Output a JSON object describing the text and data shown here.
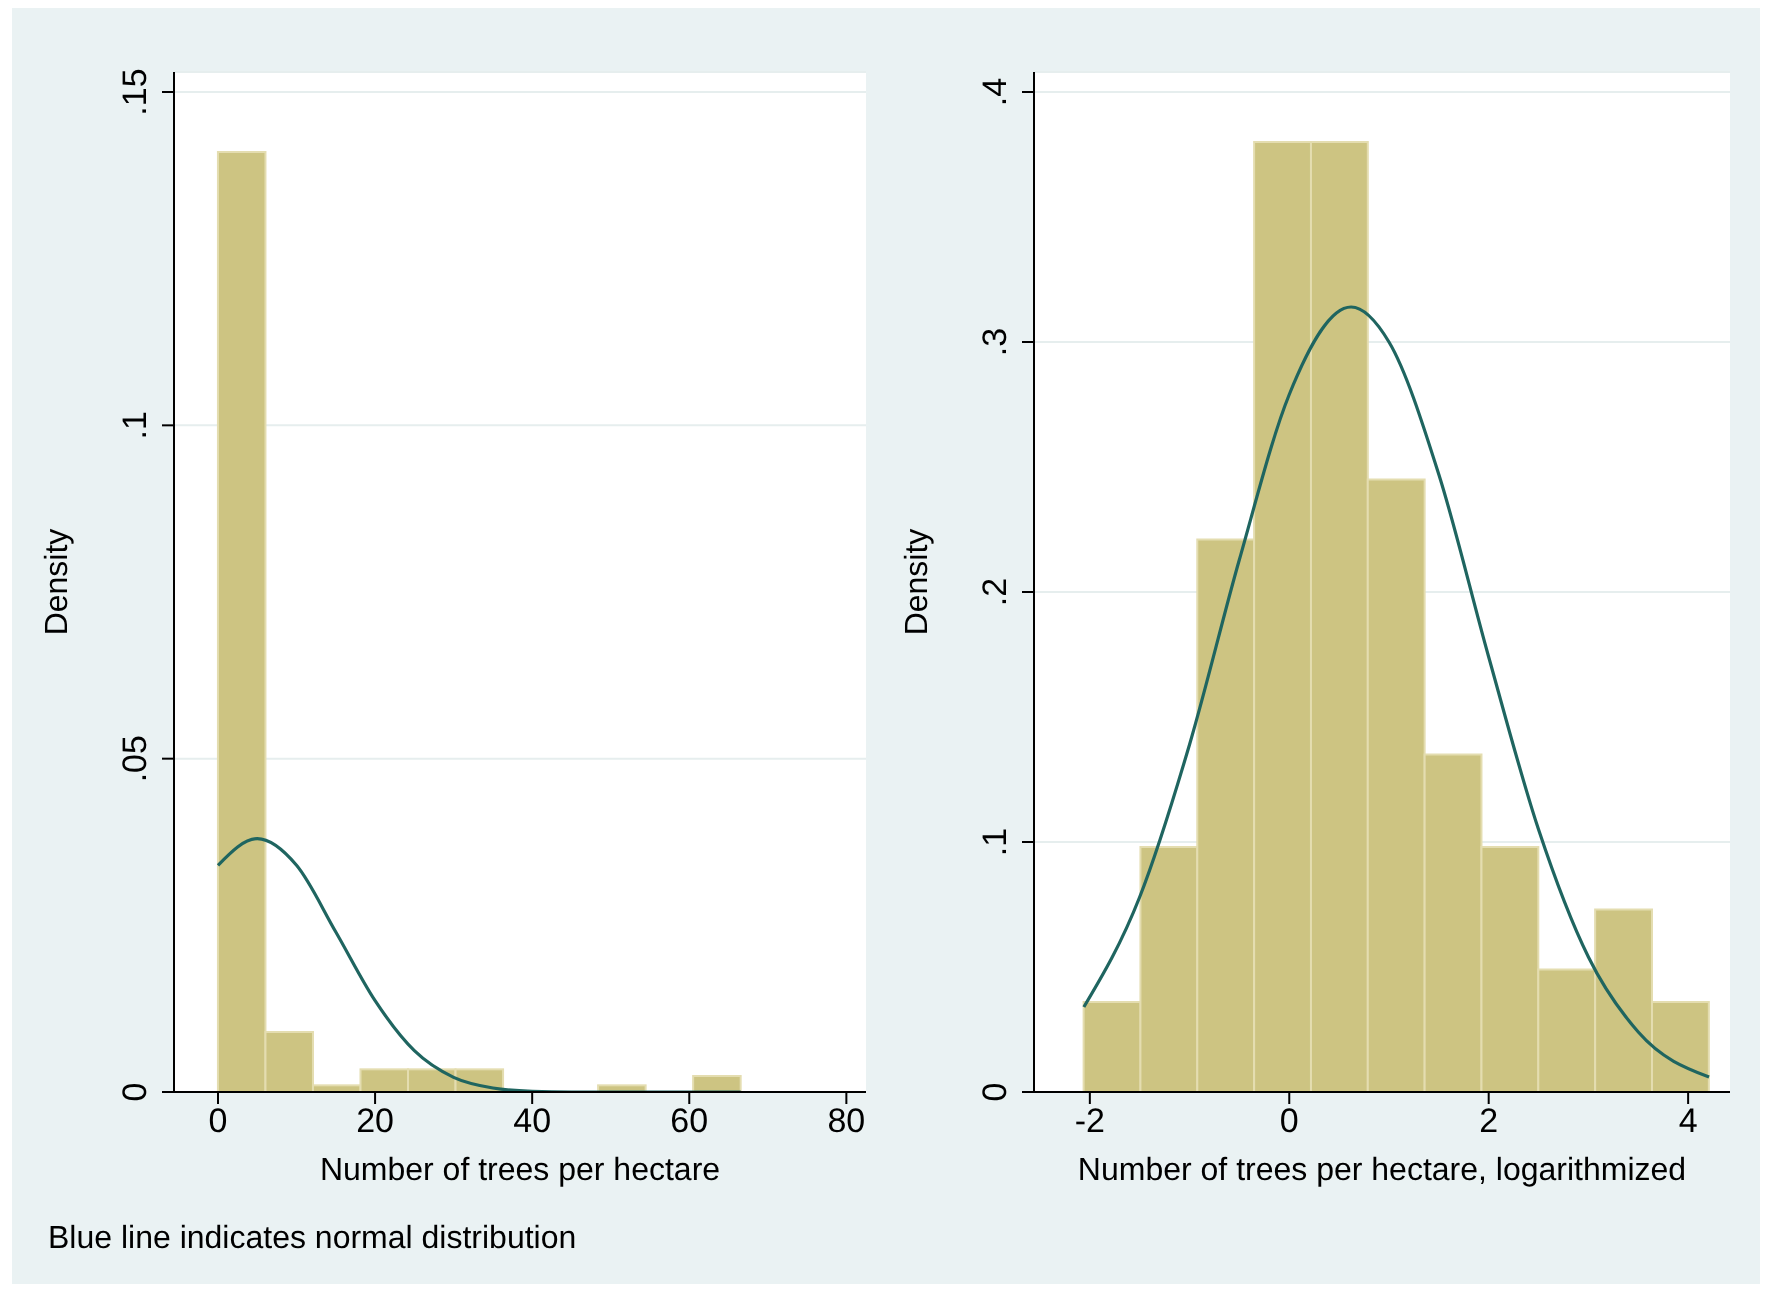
{
  "chart_data": [
    {
      "type": "histogram",
      "xlabel": "Number of trees per hectare",
      "ylabel": "Density",
      "annotations": [
        "Blue line indicates normal distribution"
      ],
      "bins": [
        0,
        6.05,
        12.1,
        18.15,
        24.2,
        30.25,
        36.3,
        42.35,
        48.4,
        54.45,
        60.5,
        66.55
      ],
      "series": [
        {
          "type": "histogram",
          "color": "#cdc482",
          "values": [
            0.141,
            0.009,
            0.001,
            0.0034,
            0.0034,
            0.0034,
            0,
            0,
            0.001,
            0,
            0.0024
          ]
        },
        {
          "type": "line",
          "color": "#1f6560",
          "x": [
            0,
            5,
            10,
            15,
            20,
            25,
            30,
            35,
            40,
            45,
            50,
            55,
            60,
            66.55
          ],
          "values": [
            0.034,
            0.038,
            0.034,
            0.024,
            0.0137,
            0.0062,
            0.0022,
            0.0006,
            0.0001,
            0,
            0,
            0,
            0,
            0
          ]
        }
      ],
      "xlim": [
        -5.6,
        82.5
      ],
      "xticks": [
        0,
        20,
        40,
        60,
        80
      ],
      "ylim": [
        0,
        0.153
      ],
      "yticks": [
        0,
        {
          "value": 0.05,
          "label": ".05"
        },
        {
          "value": 0.1,
          "label": ".1"
        },
        {
          "value": 0.15,
          "label": ".15"
        }
      ],
      "grid": "y",
      "legend": false
    },
    {
      "type": "histogram",
      "xlabel": "Number of trees per hectare, logarithmized",
      "ylabel": "Density",
      "bins": [
        -2.06,
        -1.49,
        -0.92,
        -0.35,
        0.22,
        0.79,
        1.36,
        1.93,
        2.5,
        3.07,
        3.64,
        4.21
      ],
      "series": [
        {
          "type": "histogram",
          "color": "#cdc482",
          "values": [
            0.036,
            0.098,
            0.221,
            0.38,
            0.38,
            0.245,
            0.135,
            0.098,
            0.049,
            0.073,
            0.036
          ]
        },
        {
          "type": "line",
          "color": "#1f6560",
          "x": [
            -2.06,
            -1.5,
            -1,
            -0.5,
            0,
            0.62,
            1,
            1.5,
            2,
            2.5,
            3,
            3.5,
            4.21
          ],
          "values": [
            0.034,
            0.078,
            0.139,
            0.213,
            0.279,
            0.314,
            0.3,
            0.247,
            0.174,
            0.105,
            0.054,
            0.024,
            0.006
          ]
        }
      ],
      "xlim": [
        -2.56,
        4.42
      ],
      "xticks": [
        -2,
        0,
        2,
        4
      ],
      "ylim": [
        0,
        0.408
      ],
      "yticks": [
        0,
        {
          "value": 0.1,
          "label": ".1"
        },
        {
          "value": 0.2,
          "label": ".2"
        },
        {
          "value": 0.3,
          "label": ".3"
        },
        {
          "value": 0.4,
          "label": ".4"
        }
      ],
      "grid": "y",
      "legend": false
    }
  ]
}
